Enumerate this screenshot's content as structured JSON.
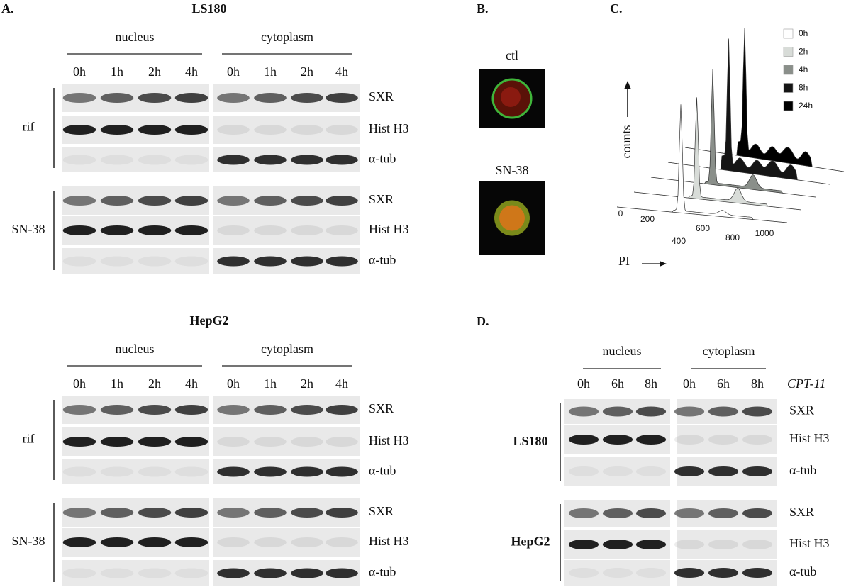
{
  "panel_a": {
    "label": "A.",
    "blots": [
      {
        "cell_line": "LS180",
        "compartments": [
          {
            "name": "nucleus",
            "timepoints": [
              "0h",
              "1h",
              "2h",
              "4h"
            ]
          },
          {
            "name": "cytoplasm",
            "timepoints": [
              "0h",
              "1h",
              "2h",
              "4h"
            ]
          }
        ],
        "treatments": [
          {
            "name": "rif",
            "proteins": [
              "SXR",
              "Hist H3",
              "α-tub"
            ]
          },
          {
            "name": "SN-38",
            "proteins": [
              "SXR",
              "Hist H3",
              "α-tub"
            ]
          }
        ]
      },
      {
        "cell_line": "HepG2",
        "compartments": [
          {
            "name": "nucleus",
            "timepoints": [
              "0h",
              "1h",
              "2h",
              "4h"
            ]
          },
          {
            "name": "cytoplasm",
            "timepoints": [
              "0h",
              "1h",
              "2h",
              "4h"
            ]
          }
        ],
        "treatments": [
          {
            "name": "rif",
            "proteins": [
              "SXR",
              "Hist H3",
              "α-tub"
            ]
          },
          {
            "name": "SN-38",
            "proteins": [
              "SXR",
              "Hist H3",
              "α-tub"
            ]
          }
        ]
      }
    ]
  },
  "panel_b": {
    "label": "B.",
    "images": [
      "ctl",
      "SN-38"
    ]
  },
  "panel_c": {
    "label": "C.",
    "y_label": "counts",
    "x_label": "PI",
    "legend": [
      {
        "label": "0h",
        "color": "#ffffff"
      },
      {
        "label": "2h",
        "color": "#d8dcd8"
      },
      {
        "label": "4h",
        "color": "#8a8f8a"
      },
      {
        "label": "8h",
        "color": "#151515"
      },
      {
        "label": "24h",
        "color": "#000000"
      }
    ],
    "xticks": [
      0,
      200,
      400,
      600,
      800,
      1000
    ]
  },
  "panel_d": {
    "label": "D.",
    "drug": "CPT-11",
    "compartments": [
      {
        "name": "nucleus",
        "timepoints": [
          "0h",
          "6h",
          "8h"
        ]
      },
      {
        "name": "cytoplasm",
        "timepoints": [
          "0h",
          "6h",
          "8h"
        ]
      }
    ],
    "cell_lines": [
      {
        "name": "LS180",
        "proteins": [
          "SXR",
          "Hist H3",
          "α-tub"
        ]
      },
      {
        "name": "HepG2",
        "proteins": [
          "SXR",
          "Hist H3",
          "α-tub"
        ]
      }
    ]
  }
}
